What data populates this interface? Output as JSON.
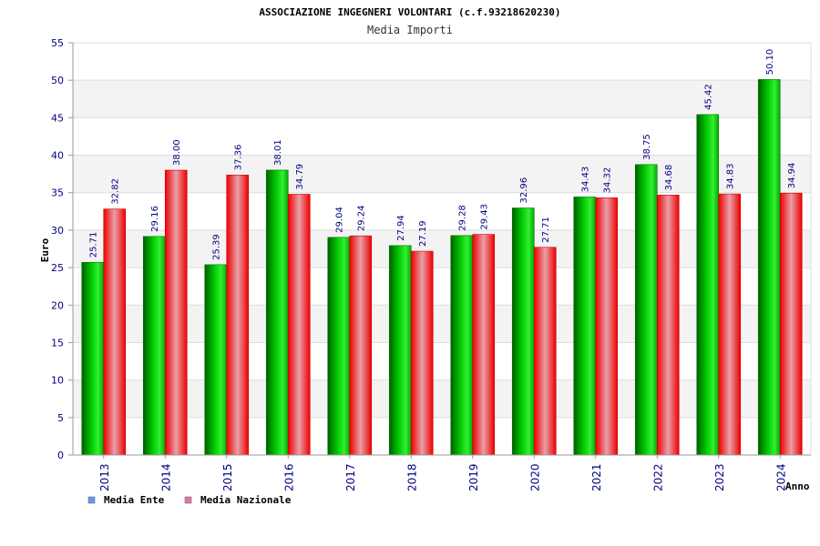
{
  "chart_data": {
    "type": "bar",
    "title": "ASSOCIAZIONE INGEGNERI VOLONTARI (c.f.93218620230)",
    "subtitle": "Media Importi",
    "xlabel": "Anno",
    "ylabel": "Euro",
    "ylim": [
      0,
      55
    ],
    "ytick_step": 5,
    "categories": [
      "2013",
      "2014",
      "2015",
      "2016",
      "2017",
      "2018",
      "2019",
      "2020",
      "2021",
      "2022",
      "2023",
      "2024"
    ],
    "series": [
      {
        "name": "Media Ente",
        "color": "#00b000",
        "legend_color": "#6699ee",
        "values": [
          25.71,
          29.16,
          25.39,
          38.01,
          29.04,
          27.94,
          29.28,
          32.96,
          34.43,
          38.75,
          45.42,
          50.1
        ]
      },
      {
        "name": "Media Nazionale",
        "color": "#ee0000",
        "legend_color": "#dd77aa",
        "values": [
          32.82,
          38.0,
          37.36,
          34.79,
          29.24,
          27.19,
          29.43,
          27.71,
          34.32,
          34.68,
          34.83,
          34.94
        ]
      }
    ],
    "legend_position": "bottom-left",
    "grid": true
  }
}
